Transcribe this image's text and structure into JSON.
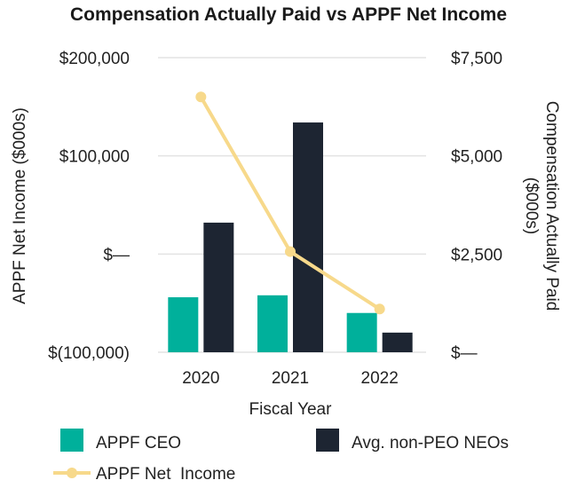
{
  "chart_data": {
    "type": "bar",
    "title": "Compensation Actually Paid vs APPF Net Income",
    "xlabel": "Fiscal Year",
    "ylabel_left": "APPF Net Income ($000s)",
    "ylabel_right": "Compensation Actually Paid ($000s)",
    "categories": [
      "2020",
      "2021",
      "2022"
    ],
    "ylim_left": [
      -100000,
      200000
    ],
    "ylim_right": [
      0,
      7500
    ],
    "left_ticks": [
      {
        "value": 200000,
        "label": "$200,000"
      },
      {
        "value": 100000,
        "label": "$100,000"
      },
      {
        "value": 0,
        "label": "$—"
      },
      {
        "value": -100000,
        "label": "$(100,000)"
      }
    ],
    "right_ticks": [
      {
        "value": 7500,
        "label": "$7,500"
      },
      {
        "value": 5000,
        "label": "$5,000"
      },
      {
        "value": 2500,
        "label": "$2,500"
      },
      {
        "value": 0,
        "label": "$—"
      }
    ],
    "grid": true,
    "series": [
      {
        "name": "APPF CEO",
        "kind": "bar",
        "axis": "right",
        "color": "#00b09b",
        "values": [
          1400,
          1450,
          1000
        ]
      },
      {
        "name": "Avg. non-PEO NEOs",
        "kind": "bar",
        "axis": "right",
        "color": "#1d2532",
        "values": [
          3300,
          5850,
          500
        ]
      },
      {
        "name": "APPF Net  Income",
        "kind": "line",
        "axis": "left",
        "color": "#f7d98b",
        "values": [
          160000,
          2500,
          -56000
        ]
      }
    ],
    "legend_position": "bottom"
  }
}
